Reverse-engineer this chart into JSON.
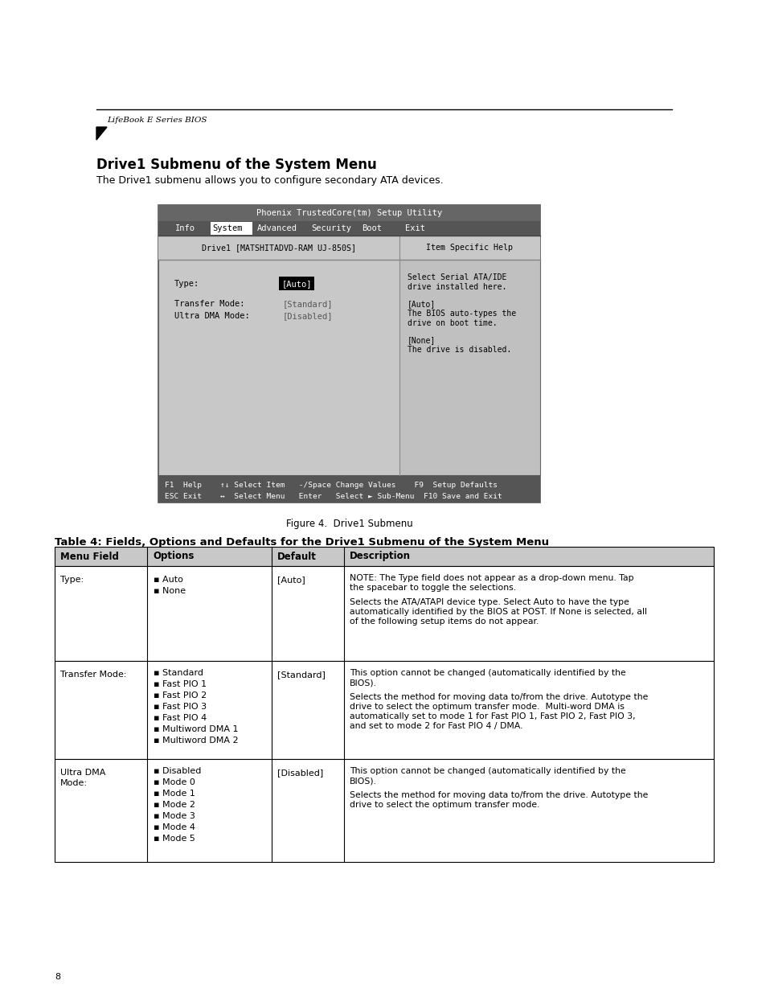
{
  "page_bg": "#ffffff",
  "header_text": "LifeBook E Series BIOS",
  "section_title": "Drive1 Submenu of the System Menu",
  "section_intro": "The Drive1 submenu allows you to configure secondary ATA devices.",
  "figure_caption": "Figure 4.  Drive1 Submenu",
  "bios_title": "Phoenix TrustedCore(tm) Setup Utility",
  "bios_menu_items": [
    "Info",
    "System",
    "Advanced",
    "Security",
    "Boot",
    "Exit"
  ],
  "bios_selected_menu": "System",
  "bios_drive_label": "Drive1 [MATSHITADVD-RAM UJ-850S]",
  "bios_help_label": "Item Specific Help",
  "bios_type_label": "Type:",
  "bios_type_value": "[Auto]",
  "bios_transfer_label": "Transfer Mode:",
  "bios_transfer_value": "[Standard]",
  "bios_dma_label": "Ultra DMA Mode:",
  "bios_dma_value": "[Disabled]",
  "bios_help_text": "Select Serial ATA/IDE\ndrive installed here.\n\n[Auto]\nThe BIOS auto-types the\ndrive on boot time.\n\n[None]\nThe drive is disabled.",
  "bios_footer_line1": "F1  Help    ↑↓ Select Item   -/Space Change Values    F9  Setup Defaults",
  "bios_footer_line2": "ESC Exit    ↔  Select Menu   Enter   Select ► Sub-Menu  F10 Save and Exit",
  "table_title": "Table 4: Fields, Options and Defaults for the Drive1 Submenu of the System Menu",
  "table_headers": [
    "Menu Field",
    "Options",
    "Default",
    "Description"
  ],
  "table_row1_field": "Type:",
  "table_row1_options": [
    "Auto",
    "None"
  ],
  "table_row1_default": "[Auto]",
  "table_row1_desc": "NOTE: The Type field does not appear as a drop-down menu. Tap\nthe spacebar to toggle the selections.\n\nSelects the ATA/ATAPI device type. Select Auto to have the type\nautomatically identified by the BIOS at POST. If None is selected, all\nof the following setup items do not appear.",
  "table_row2_field": "Transfer Mode:",
  "table_row2_options": [
    "Standard",
    "Fast PIO 1",
    "Fast PIO 2",
    "Fast PIO 3",
    "Fast PIO 4",
    "Multiword DMA 1",
    "Multiword DMA 2"
  ],
  "table_row2_default": "[Standard]",
  "table_row2_desc": "This option cannot be changed (automatically identified by the\nBIOS).\n\nSelects the method for moving data to/from the drive. Autotype the\ndrive to select the optimum transfer mode.  Multi-word DMA is\nautomatically set to mode 1 for Fast PIO 1, Fast PIO 2, Fast PIO 3,\nand set to mode 2 for Fast PIO 4 / DMA.",
  "table_row3_field": "Ultra DMA\nMode:",
  "table_row3_options": [
    "Disabled",
    "Mode 0",
    "Mode 1",
    "Mode 2",
    "Mode 3",
    "Mode 4",
    "Mode 5"
  ],
  "table_row3_default": "[Disabled]",
  "table_row3_desc": "This option cannot be changed (automatically identified by the\nBIOS).\n\nSelects the method for moving data to/from the drive. Autotype the\ndrive to select the optimum transfer mode.",
  "page_number": "8"
}
